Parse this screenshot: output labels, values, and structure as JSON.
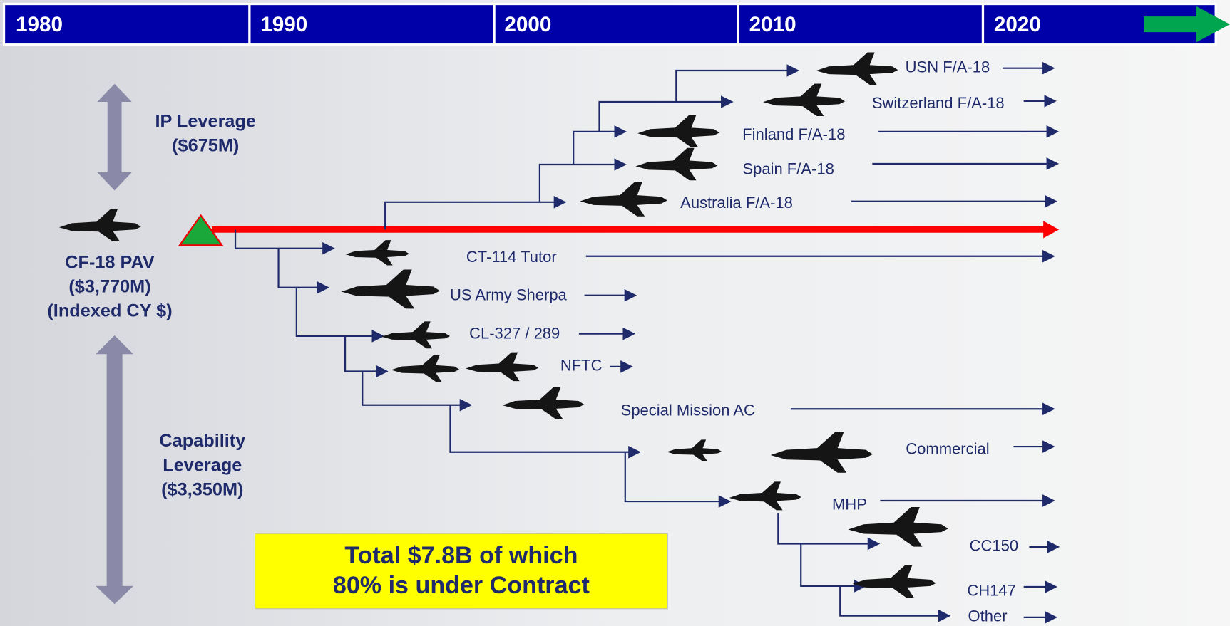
{
  "timeline": [
    "1980",
    "1990",
    "2000",
    "2010",
    "2020"
  ],
  "platform": [
    "CF-18 PAV",
    "($3,770M)",
    "(Indexed CY $)"
  ],
  "ip_leverage": [
    "IP Leverage",
    "($675M)"
  ],
  "capability_leverage": [
    "Capability",
    "Leverage",
    "($3,350M)"
  ],
  "branches": [
    "USN F/A-18",
    "Switzerland F/A-18",
    "Finland F/A-18",
    "Spain F/A-18",
    "Australia F/A-18",
    "CT-114 Tutor",
    "US Army Sherpa",
    "CL-327 / 289",
    "NFTC",
    "Special Mission AC",
    "Commercial",
    "MHP",
    "CC150",
    "CH147",
    "Other"
  ],
  "total": [
    "Total $7.8B of which",
    "80% is under Contract"
  ]
}
